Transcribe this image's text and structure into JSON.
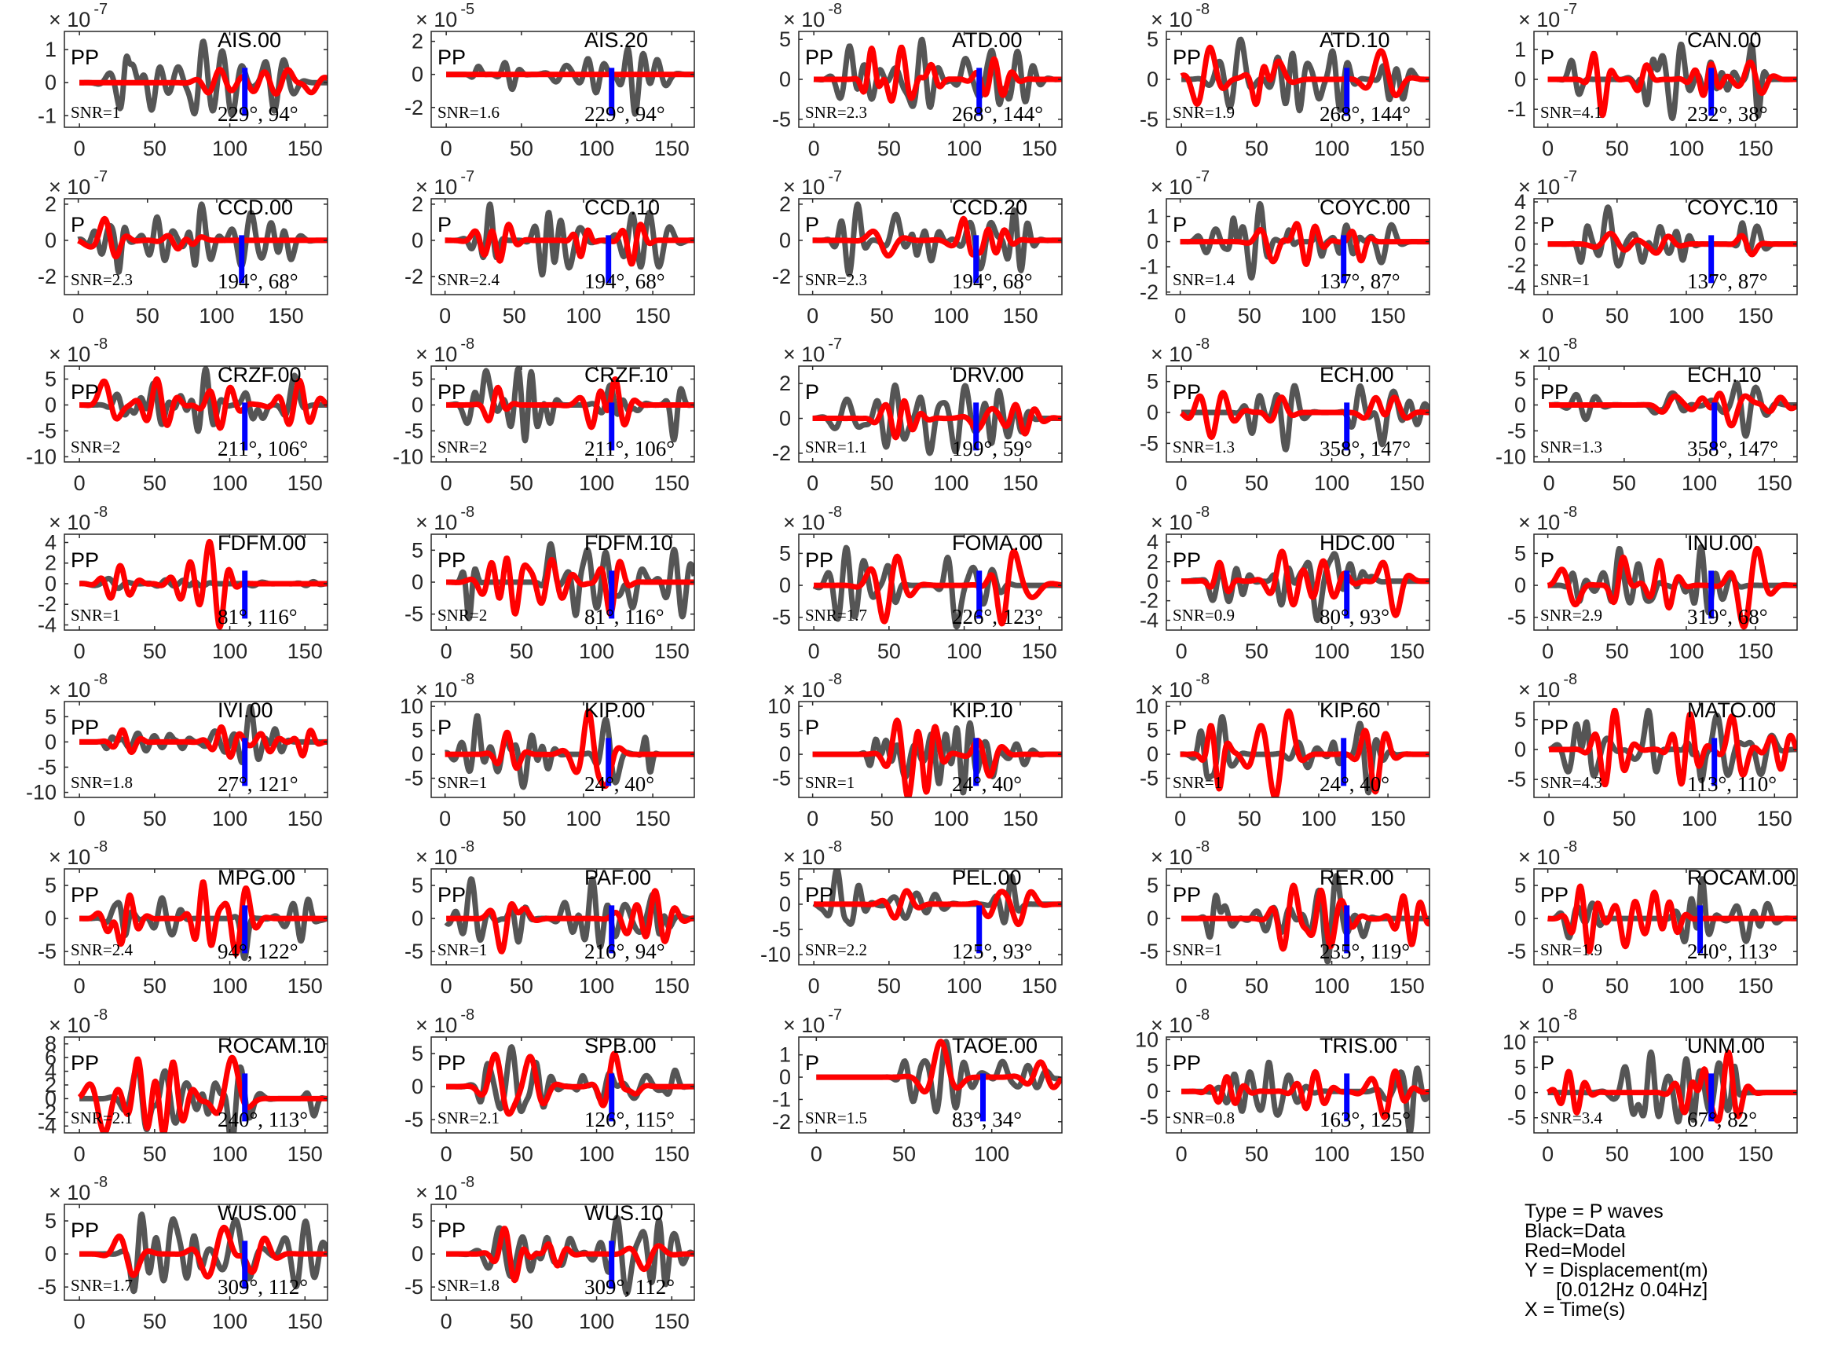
{
  "figure": {
    "data_color": "#555555",
    "model_color": "#ff0000",
    "marker_color": "#0000ff"
  },
  "legend": {
    "line1": "Type = P waves",
    "line2": "Black=Data",
    "line3": "Red=Model",
    "line4": "Y = Displacement(m)",
    "line5": "[0.012Hz 0.04Hz]",
    "line6": "X = Time(s)"
  },
  "chart_data": [
    {
      "type": "line",
      "station": "AIS.00",
      "phase": "PP",
      "snr": "SNR=1",
      "az_dist": "229°, 94°",
      "exponent": "-7",
      "yticks": [
        -1,
        0,
        1
      ],
      "ylim": [
        -1.35,
        1.55
      ],
      "xticks": [
        0,
        50,
        100,
        150
      ],
      "xlim": [
        -10,
        165
      ],
      "marker_x": 110,
      "data_amp": 1.25,
      "model_amp": 0.4,
      "seed": 1
    },
    {
      "type": "line",
      "station": "AIS.20",
      "phase": "PP",
      "snr": "SNR=1.6",
      "az_dist": "229°, 94°",
      "exponent": "-5",
      "yticks": [
        -2,
        0,
        2
      ],
      "ylim": [
        -3.2,
        2.6
      ],
      "xticks": [
        0,
        50,
        100,
        150
      ],
      "xlim": [
        -10,
        165
      ],
      "marker_x": 110,
      "data_amp": 2.4,
      "model_amp": 0.0,
      "seed": 2
    },
    {
      "type": "line",
      "station": "ATD.00",
      "phase": "PP",
      "snr": "SNR=2.3",
      "az_dist": "268°, 144°",
      "exponent": "-8",
      "yticks": [
        -5,
        0,
        5
      ],
      "ylim": [
        -6,
        6
      ],
      "xticks": [
        0,
        50,
        100,
        150
      ],
      "xlim": [
        -10,
        165
      ],
      "marker_x": 110,
      "data_amp": 5,
      "model_amp": 4,
      "seed": 3
    },
    {
      "type": "line",
      "station": "ATD.10",
      "phase": "PP",
      "snr": "SNR=1.9",
      "az_dist": "268°, 144°",
      "exponent": "-8",
      "yticks": [
        -5,
        0,
        5
      ],
      "ylim": [
        -6,
        6
      ],
      "xticks": [
        0,
        50,
        100,
        150
      ],
      "xlim": [
        -10,
        165
      ],
      "marker_x": 110,
      "data_amp": 5,
      "model_amp": 4,
      "seed": 4
    },
    {
      "type": "line",
      "station": "CAN.00",
      "phase": "P",
      "snr": "SNR=4.1",
      "az_dist": "232°, 38°",
      "exponent": "-7",
      "yticks": [
        -1,
        0,
        1
      ],
      "ylim": [
        -1.6,
        1.6
      ],
      "xticks": [
        0,
        50,
        100,
        150
      ],
      "xlim": [
        -10,
        180
      ],
      "marker_x": 118,
      "data_amp": 1.3,
      "model_amp": 1.2,
      "seed": 5
    },
    {
      "type": "line",
      "station": "CCD.00",
      "phase": "P",
      "snr": "SNR=2.3",
      "az_dist": "194°, 68°",
      "exponent": "-7",
      "yticks": [
        -2,
        0,
        2
      ],
      "ylim": [
        -3,
        2.3
      ],
      "xticks": [
        0,
        50,
        100,
        150
      ],
      "xlim": [
        -10,
        180
      ],
      "marker_x": 118,
      "data_amp": 2,
      "model_amp": 1.2,
      "seed": 6
    },
    {
      "type": "line",
      "station": "CCD.10",
      "phase": "P",
      "snr": "SNR=2.4",
      "az_dist": "194°, 68°",
      "exponent": "-7",
      "yticks": [
        -2,
        0,
        2
      ],
      "ylim": [
        -3,
        2.3
      ],
      "xticks": [
        0,
        50,
        100,
        150
      ],
      "xlim": [
        -10,
        180
      ],
      "marker_x": 118,
      "data_amp": 2,
      "model_amp": 1.3,
      "seed": 7
    },
    {
      "type": "line",
      "station": "CCD.20",
      "phase": "P",
      "snr": "SNR=2.3",
      "az_dist": "194°, 68°",
      "exponent": "-7",
      "yticks": [
        -2,
        0,
        2
      ],
      "ylim": [
        -3,
        2.3
      ],
      "xticks": [
        0,
        50,
        100,
        150
      ],
      "xlim": [
        -10,
        180
      ],
      "marker_x": 118,
      "data_amp": 2,
      "model_amp": 1.2,
      "seed": 8
    },
    {
      "type": "line",
      "station": "COYC.00",
      "phase": "P",
      "snr": "SNR=1.4",
      "az_dist": "137°, 87°",
      "exponent": "-7",
      "yticks": [
        -2,
        -1,
        0,
        1
      ],
      "ylim": [
        -2.1,
        1.7
      ],
      "xticks": [
        0,
        50,
        100,
        150
      ],
      "xlim": [
        -10,
        180
      ],
      "marker_x": 118,
      "data_amp": 1.5,
      "model_amp": 0.9,
      "seed": 9
    },
    {
      "type": "line",
      "station": "COYC.10",
      "phase": "P",
      "snr": "SNR=1",
      "az_dist": "137°, 87°",
      "exponent": "-7",
      "yticks": [
        -4,
        -2,
        0,
        2,
        4
      ],
      "ylim": [
        -4.8,
        4.3
      ],
      "xticks": [
        0,
        50,
        100,
        150
      ],
      "xlim": [
        -10,
        180
      ],
      "marker_x": 118,
      "data_amp": 3.5,
      "model_amp": 1.0,
      "seed": 10
    },
    {
      "type": "line",
      "station": "CRZF.00",
      "phase": "PP",
      "snr": "SNR=2",
      "az_dist": "211°, 106°",
      "exponent": "-8",
      "yticks": [
        -10,
        -5,
        0,
        5
      ],
      "ylim": [
        -11,
        7.5
      ],
      "xticks": [
        0,
        50,
        100,
        150
      ],
      "xlim": [
        -10,
        165
      ],
      "marker_x": 110,
      "data_amp": 7,
      "model_amp": 5,
      "seed": 11
    },
    {
      "type": "line",
      "station": "CRZF.10",
      "phase": "PP",
      "snr": "SNR=2",
      "az_dist": "211°, 106°",
      "exponent": "-8",
      "yticks": [
        -10,
        -5,
        0,
        5
      ],
      "ylim": [
        -11,
        7.5
      ],
      "xticks": [
        0,
        50,
        100,
        150
      ],
      "xlim": [
        -10,
        165
      ],
      "marker_x": 110,
      "data_amp": 7,
      "model_amp": 5,
      "seed": 12
    },
    {
      "type": "line",
      "station": "DRV.00",
      "phase": "P",
      "snr": "SNR=1.1",
      "az_dist": "199°, 59°",
      "exponent": "-7",
      "yticks": [
        -2,
        0,
        2
      ],
      "ylim": [
        -2.5,
        3
      ],
      "xticks": [
        0,
        50,
        100,
        150
      ],
      "xlim": [
        -10,
        180
      ],
      "marker_x": 118,
      "data_amp": 2,
      "model_amp": 1.1,
      "seed": 13
    },
    {
      "type": "line",
      "station": "ECH.00",
      "phase": "PP",
      "snr": "SNR=1.3",
      "az_dist": "358°, 147°",
      "exponent": "-8",
      "yticks": [
        -5,
        0,
        5
      ],
      "ylim": [
        -8,
        7.5
      ],
      "xticks": [
        0,
        50,
        100,
        150
      ],
      "xlim": [
        -10,
        165
      ],
      "marker_x": 110,
      "data_amp": 6,
      "model_amp": 4,
      "seed": 14
    },
    {
      "type": "line",
      "station": "ECH.10",
      "phase": "PP",
      "snr": "SNR=1.3",
      "az_dist": "358°, 147°",
      "exponent": "-8",
      "yticks": [
        -10,
        -5,
        0,
        5
      ],
      "ylim": [
        -11,
        7.5
      ],
      "xticks": [
        0,
        50,
        100,
        150
      ],
      "xlim": [
        -10,
        165
      ],
      "marker_x": 110,
      "data_amp": 6,
      "model_amp": 4,
      "seed": 15
    },
    {
      "type": "line",
      "station": "FDFM.00",
      "phase": "PP",
      "snr": "SNR=1",
      "az_dist": "81°, 116°",
      "exponent": "-8",
      "yticks": [
        -4,
        -2,
        0,
        2,
        4
      ],
      "ylim": [
        -4.5,
        4.8
      ],
      "xticks": [
        0,
        50,
        100,
        150
      ],
      "xlim": [
        -10,
        165
      ],
      "marker_x": 110,
      "data_amp": 0.5,
      "model_amp": 4.2,
      "seed": 16
    },
    {
      "type": "line",
      "station": "FDFM.10",
      "phase": "PP",
      "snr": "SNR=2",
      "az_dist": "81°, 116°",
      "exponent": "-8",
      "yticks": [
        -5,
        0,
        5
      ],
      "ylim": [
        -7.5,
        7.5
      ],
      "xticks": [
        0,
        50,
        100,
        150
      ],
      "xlim": [
        -10,
        165
      ],
      "marker_x": 110,
      "data_amp": 6,
      "model_amp": 5,
      "seed": 17
    },
    {
      "type": "line",
      "station": "FOMA.00",
      "phase": "PP",
      "snr": "SNR=1.7",
      "az_dist": "226°, 123°",
      "exponent": "-8",
      "yticks": [
        -5,
        0,
        5
      ],
      "ylim": [
        -7,
        8
      ],
      "xticks": [
        0,
        50,
        100,
        150
      ],
      "xlim": [
        -10,
        165
      ],
      "marker_x": 110,
      "data_amp": 6.5,
      "model_amp": 6,
      "seed": 18
    },
    {
      "type": "line",
      "station": "HDC.00",
      "phase": "PP",
      "snr": "SNR=0.9",
      "az_dist": "80°, 93°",
      "exponent": "-8",
      "yticks": [
        -4,
        -2,
        0,
        2,
        4
      ],
      "ylim": [
        -5,
        4.8
      ],
      "xticks": [
        0,
        50,
        100,
        150
      ],
      "xlim": [
        -10,
        165
      ],
      "marker_x": 110,
      "data_amp": 4,
      "model_amp": 3.5,
      "seed": 19
    },
    {
      "type": "line",
      "station": "INU.00",
      "phase": "P",
      "snr": "SNR=2.9",
      "az_dist": "319°, 68°",
      "exponent": "-8",
      "yticks": [
        -5,
        0,
        5
      ],
      "ylim": [
        -7,
        8
      ],
      "xticks": [
        0,
        50,
        100,
        150
      ],
      "xlim": [
        -10,
        180
      ],
      "marker_x": 118,
      "data_amp": 6,
      "model_amp": 6.5,
      "seed": 20
    },
    {
      "type": "line",
      "station": "IVI.00",
      "phase": "PP",
      "snr": "SNR=1.8",
      "az_dist": "27°, 121°",
      "exponent": "-8",
      "yticks": [
        -10,
        -5,
        0,
        5
      ],
      "ylim": [
        -11,
        8
      ],
      "xticks": [
        0,
        50,
        100,
        150
      ],
      "xlim": [
        -10,
        165
      ],
      "marker_x": 110,
      "data_amp": 7,
      "model_amp": 3,
      "seed": 21
    },
    {
      "type": "line",
      "station": "KIP.00",
      "phase": "P",
      "snr": "SNR=1",
      "az_dist": "24°, 40°",
      "exponent": "-8",
      "yticks": [
        -5,
        0,
        5,
        10
      ],
      "ylim": [
        -9,
        11
      ],
      "xticks": [
        0,
        50,
        100,
        150
      ],
      "xlim": [
        -10,
        180
      ],
      "marker_x": 118,
      "data_amp": 8,
      "model_amp": 9,
      "seed": 22
    },
    {
      "type": "line",
      "station": "KIP.10",
      "phase": "P",
      "snr": "SNR=1",
      "az_dist": "24°, 40°",
      "exponent": "-8",
      "yticks": [
        -5,
        0,
        5,
        10
      ],
      "ylim": [
        -9,
        11
      ],
      "xticks": [
        0,
        50,
        100,
        150
      ],
      "xlim": [
        -10,
        180
      ],
      "marker_x": 118,
      "data_amp": 8,
      "model_amp": 9,
      "seed": 23
    },
    {
      "type": "line",
      "station": "KIP.60",
      "phase": "P",
      "snr": "SNR=1",
      "az_dist": "24°, 40°",
      "exponent": "-8",
      "yticks": [
        -5,
        0,
        5,
        10
      ],
      "ylim": [
        -9,
        11
      ],
      "xticks": [
        0,
        50,
        100,
        150
      ],
      "xlim": [
        -10,
        180
      ],
      "marker_x": 118,
      "data_amp": 8,
      "model_amp": 9,
      "seed": 24
    },
    {
      "type": "line",
      "station": "MATO.00",
      "phase": "PP",
      "snr": "SNR=4.3",
      "az_dist": "113°, 110°",
      "exponent": "-8",
      "yticks": [
        -5,
        0,
        5
      ],
      "ylim": [
        -8,
        8
      ],
      "xticks": [
        0,
        50,
        100,
        150
      ],
      "xlim": [
        -10,
        165
      ],
      "marker_x": 110,
      "data_amp": 6.5,
      "model_amp": 6.5,
      "seed": 25
    },
    {
      "type": "line",
      "station": "MPG.00",
      "phase": "PP",
      "snr": "SNR=2.4",
      "az_dist": "94°, 122°",
      "exponent": "-8",
      "yticks": [
        -5,
        0,
        5
      ],
      "ylim": [
        -7,
        7.5
      ],
      "xticks": [
        0,
        50,
        100,
        150
      ],
      "xlim": [
        -10,
        165
      ],
      "marker_x": 110,
      "data_amp": 6,
      "model_amp": 5.5,
      "seed": 26
    },
    {
      "type": "line",
      "station": "PAF.00",
      "phase": "PP",
      "snr": "SNR=1",
      "az_dist": "216°, 94°",
      "exponent": "-8",
      "yticks": [
        -5,
        0,
        5
      ],
      "ylim": [
        -7,
        7.5
      ],
      "xticks": [
        0,
        50,
        100,
        150
      ],
      "xlim": [
        -10,
        165
      ],
      "marker_x": 110,
      "data_amp": 6,
      "model_amp": 5,
      "seed": 27
    },
    {
      "type": "line",
      "station": "PEL.00",
      "phase": "PP",
      "snr": "SNR=2.2",
      "az_dist": "125°, 93°",
      "exponent": "-8",
      "yticks": [
        -10,
        -5,
        0,
        5
      ],
      "ylim": [
        -12,
        7
      ],
      "xticks": [
        0,
        50,
        100,
        150
      ],
      "xlim": [
        -10,
        165
      ],
      "marker_x": 110,
      "data_amp": 7,
      "model_amp": 4,
      "seed": 28
    },
    {
      "type": "line",
      "station": "RER.00",
      "phase": "PP",
      "snr": "SNR=1",
      "az_dist": "235°, 119°",
      "exponent": "-8",
      "yticks": [
        -5,
        0,
        5
      ],
      "ylim": [
        -7,
        7.5
      ],
      "xticks": [
        0,
        50,
        100,
        150
      ],
      "xlim": [
        -10,
        165
      ],
      "marker_x": 110,
      "data_amp": 6.5,
      "model_amp": 5,
      "seed": 29
    },
    {
      "type": "line",
      "station": "ROCAM.00",
      "phase": "PP",
      "snr": "SNR=1.9",
      "az_dist": "240°, 113°",
      "exponent": "-8",
      "yticks": [
        -5,
        0,
        5
      ],
      "ylim": [
        -7,
        7.5
      ],
      "xticks": [
        0,
        50,
        100,
        150
      ],
      "xlim": [
        -10,
        180
      ],
      "marker_x": 110,
      "data_amp": 6,
      "model_amp": 5,
      "seed": 30
    },
    {
      "type": "line",
      "station": "ROCAM.10",
      "phase": "PP",
      "snr": "SNR=2.1",
      "az_dist": "240°, 113°",
      "exponent": "-8",
      "yticks": [
        -4,
        -2,
        0,
        2,
        4,
        6,
        8
      ],
      "ylim": [
        -5,
        9
      ],
      "xticks": [
        0,
        50,
        100,
        150
      ],
      "xlim": [
        -10,
        165
      ],
      "marker_x": 110,
      "data_amp": 7,
      "model_amp": 6,
      "seed": 31
    },
    {
      "type": "line",
      "station": "SPB.00",
      "phase": "PP",
      "snr": "SNR=2.1",
      "az_dist": "126°, 115°",
      "exponent": "-8",
      "yticks": [
        -5,
        0,
        5
      ],
      "ylim": [
        -7,
        7.5
      ],
      "xticks": [
        0,
        50,
        100,
        150
      ],
      "xlim": [
        -10,
        165
      ],
      "marker_x": 110,
      "data_amp": 6,
      "model_amp": 5,
      "seed": 32
    },
    {
      "type": "line",
      "station": "TAOE.00",
      "phase": "P",
      "snr": "SNR=1.5",
      "az_dist": "83°, 34°",
      "exponent": "-7",
      "yticks": [
        -2,
        -1,
        0,
        1
      ],
      "ylim": [
        -2.5,
        1.8
      ],
      "xticks": [
        0,
        50,
        100
      ],
      "xlim": [
        -10,
        140
      ],
      "marker_x": 95,
      "data_amp": 1.6,
      "model_amp": 1.6,
      "seed": 33
    },
    {
      "type": "line",
      "station": "TRIS.00",
      "phase": "PP",
      "snr": "SNR=0.8",
      "az_dist": "163°, 125°",
      "exponent": "-8",
      "yticks": [
        -5,
        0,
        5,
        10
      ],
      "ylim": [
        -8,
        10.5
      ],
      "xticks": [
        0,
        50,
        100,
        150
      ],
      "xlim": [
        -10,
        165
      ],
      "marker_x": 110,
      "data_amp": 8,
      "model_amp": 5,
      "seed": 34
    },
    {
      "type": "line",
      "station": "UNM.00",
      "phase": "P",
      "snr": "SNR=3.4",
      "az_dist": "67°, 82°",
      "exponent": "-8",
      "yticks": [
        -5,
        0,
        5,
        10
      ],
      "ylim": [
        -8,
        11
      ],
      "xticks": [
        0,
        50,
        100,
        150
      ],
      "xlim": [
        -10,
        180
      ],
      "marker_x": 118,
      "data_amp": 8,
      "model_amp": 8,
      "seed": 35
    },
    {
      "type": "line",
      "station": "WUS.00",
      "phase": "PP",
      "snr": "SNR=1.7",
      "az_dist": "309°, 112°",
      "exponent": "-8",
      "yticks": [
        -5,
        0,
        5
      ],
      "ylim": [
        -7,
        7.5
      ],
      "xticks": [
        0,
        50,
        100,
        150
      ],
      "xlim": [
        -10,
        165
      ],
      "marker_x": 110,
      "data_amp": 6,
      "model_amp": 4,
      "seed": 36
    },
    {
      "type": "line",
      "station": "WUS.10",
      "phase": "PP",
      "snr": "SNR=1.8",
      "az_dist": "309°, 112°",
      "exponent": "-8",
      "yticks": [
        -5,
        0,
        5
      ],
      "ylim": [
        -7,
        7.5
      ],
      "xticks": [
        0,
        50,
        100,
        150
      ],
      "xlim": [
        -10,
        165
      ],
      "marker_x": 110,
      "data_amp": 6,
      "model_amp": 4,
      "seed": 37
    }
  ]
}
